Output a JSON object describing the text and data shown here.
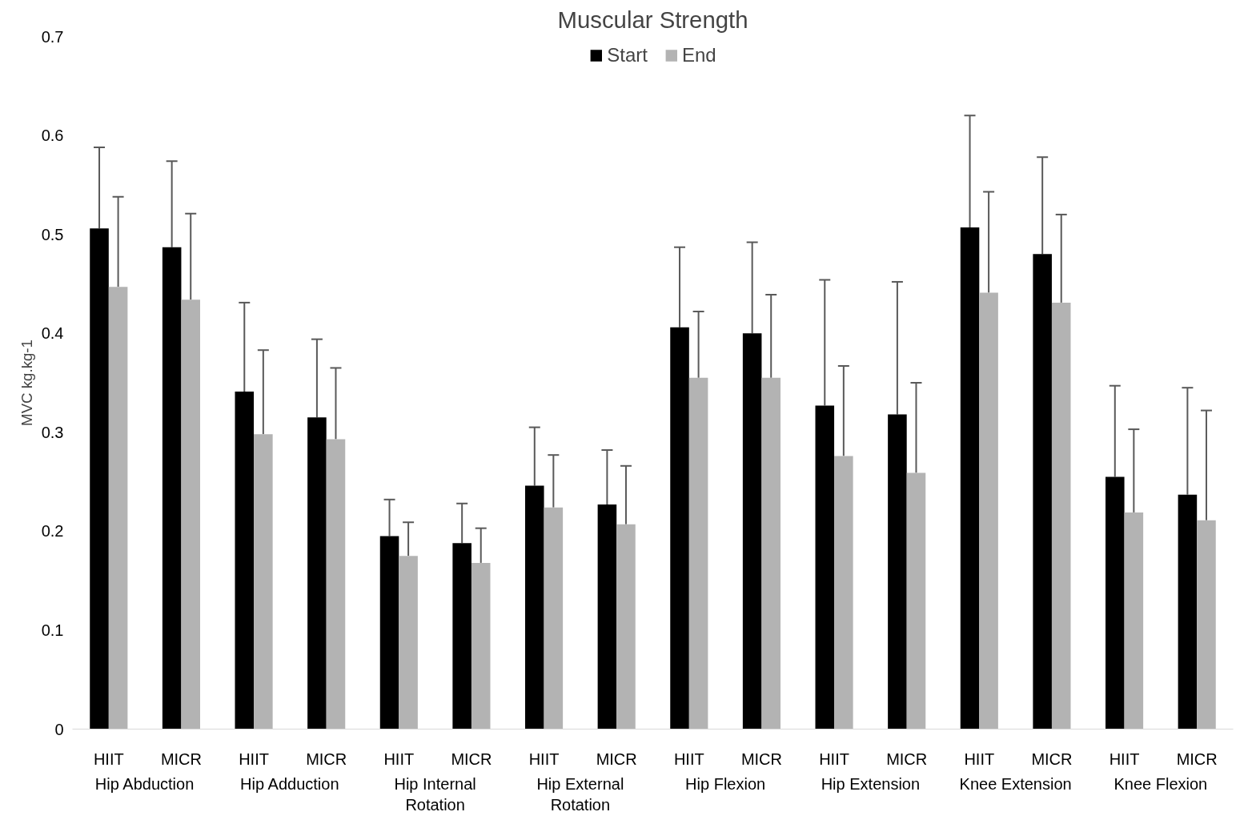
{
  "chart_data": {
    "type": "bar",
    "title": "Muscular Strength",
    "ylabel": "MVC kg.kg-1",
    "categories": [
      "HIIT",
      "MICR",
      "HIIT",
      "MICR",
      "HIIT",
      "MICR",
      "HIIT",
      "MICR",
      "HIIT",
      "MICR",
      "HIIT",
      "MICR",
      "HIIT",
      "MICR",
      "HIIT",
      "MICR"
    ],
    "annotations": [
      "Hip Abduction",
      "Hip Adduction",
      "Hip Internal Rotation",
      "Hip External Rotation",
      "Hip Flexion",
      "Hip Extension",
      "Knee Extension",
      "Knee Flexion"
    ],
    "series": [
      {
        "name": "Start",
        "color": "#000000",
        "values": [
          0.506,
          0.487,
          0.341,
          0.315,
          0.195,
          0.188,
          0.246,
          0.227,
          0.406,
          0.4,
          0.327,
          0.318,
          0.507,
          0.48,
          0.255,
          0.237
        ],
        "errors": [
          [
            0.506,
            0.588
          ],
          [
            0.487,
            0.574
          ],
          [
            0.341,
            0.431
          ],
          [
            0.315,
            0.394
          ],
          [
            0.195,
            0.232
          ],
          [
            0.188,
            0.228
          ],
          [
            0.246,
            0.305
          ],
          [
            0.227,
            0.282
          ],
          [
            0.406,
            0.487
          ],
          [
            0.4,
            0.492
          ],
          [
            0.327,
            0.454
          ],
          [
            0.318,
            0.452
          ],
          [
            0.507,
            0.62
          ],
          [
            0.48,
            0.578
          ],
          [
            0.255,
            0.347
          ],
          [
            0.237,
            0.345
          ]
        ]
      },
      {
        "name": "End",
        "color": "#b3b3b3",
        "values": [
          0.447,
          0.434,
          0.298,
          0.293,
          0.175,
          0.168,
          0.224,
          0.207,
          0.355,
          0.355,
          0.276,
          0.259,
          0.441,
          0.431,
          0.219,
          0.211
        ],
        "errors": [
          [
            0.447,
            0.538
          ],
          [
            0.434,
            0.521
          ],
          [
            0.298,
            0.383
          ],
          [
            0.293,
            0.365
          ],
          [
            0.175,
            0.209
          ],
          [
            0.168,
            0.203
          ],
          [
            0.224,
            0.277
          ],
          [
            0.207,
            0.266
          ],
          [
            0.355,
            0.422
          ],
          [
            0.355,
            0.439
          ],
          [
            0.276,
            0.367
          ],
          [
            0.259,
            0.35
          ],
          [
            0.441,
            0.543
          ],
          [
            0.431,
            0.52
          ],
          [
            0.219,
            0.303
          ],
          [
            0.211,
            0.322
          ]
        ]
      }
    ],
    "ylim": [
      0,
      0.7
    ],
    "yticks": [
      0,
      0.1,
      0.2,
      0.3,
      0.4,
      0.5,
      0.6,
      0.7
    ],
    "grid": false,
    "legend": "top"
  }
}
